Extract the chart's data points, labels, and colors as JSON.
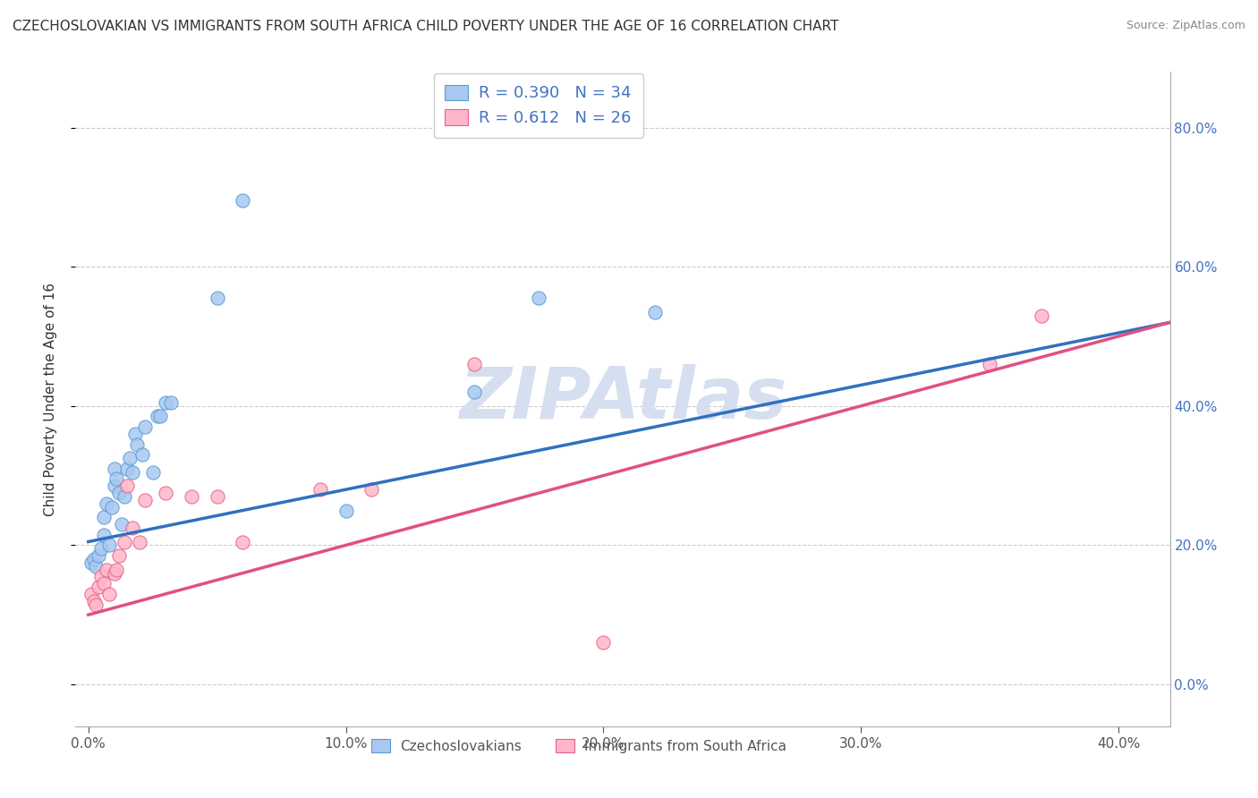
{
  "title": "CZECHOSLOVAKIAN VS IMMIGRANTS FROM SOUTH AFRICA CHILD POVERTY UNDER THE AGE OF 16 CORRELATION CHART",
  "source": "Source: ZipAtlas.com",
  "ylabel": "Child Poverty Under the Age of 16",
  "x_tick_labels": [
    "0.0%",
    "10.0%",
    "20.0%",
    "30.0%",
    "40.0%"
  ],
  "y_tick_labels": [
    "0.0%",
    "20.0%",
    "40.0%",
    "60.0%",
    "80.0%"
  ],
  "x_tick_vals": [
    0.0,
    0.1,
    0.2,
    0.3,
    0.4
  ],
  "y_tick_vals": [
    0.0,
    0.2,
    0.4,
    0.6,
    0.8
  ],
  "xlim": [
    -0.005,
    0.42
  ],
  "ylim": [
    -0.06,
    0.88
  ],
  "watermark": "ZIPAtlas",
  "series": [
    {
      "name": "Czechoslovakians",
      "fill_color": "#A8C8F0",
      "edge_color": "#5B9BD5",
      "line_color": "#3070C0",
      "R": 0.39,
      "N": 34,
      "x": [
        0.001,
        0.002,
        0.003,
        0.004,
        0.005,
        0.006,
        0.006,
        0.007,
        0.008,
        0.009,
        0.01,
        0.01,
        0.011,
        0.012,
        0.013,
        0.014,
        0.015,
        0.016,
        0.017,
        0.018,
        0.019,
        0.021,
        0.022,
        0.025,
        0.027,
        0.028,
        0.03,
        0.032,
        0.05,
        0.06,
        0.1,
        0.15,
        0.175,
        0.22
      ],
      "y": [
        0.175,
        0.18,
        0.17,
        0.185,
        0.195,
        0.215,
        0.24,
        0.26,
        0.2,
        0.255,
        0.285,
        0.31,
        0.295,
        0.275,
        0.23,
        0.27,
        0.31,
        0.325,
        0.305,
        0.36,
        0.345,
        0.33,
        0.37,
        0.305,
        0.385,
        0.385,
        0.405,
        0.405,
        0.555,
        0.695,
        0.25,
        0.42,
        0.555,
        0.535
      ],
      "trend_x": [
        0.0,
        0.42
      ],
      "trend_y": [
        0.205,
        0.52
      ]
    },
    {
      "name": "Immigrants from South Africa",
      "fill_color": "#FFB6C8",
      "edge_color": "#E8608A",
      "line_color": "#E05080",
      "R": 0.612,
      "N": 26,
      "x": [
        0.001,
        0.002,
        0.003,
        0.004,
        0.005,
        0.006,
        0.007,
        0.008,
        0.01,
        0.011,
        0.012,
        0.014,
        0.015,
        0.017,
        0.02,
        0.022,
        0.03,
        0.04,
        0.05,
        0.06,
        0.09,
        0.11,
        0.15,
        0.2,
        0.35,
        0.37
      ],
      "y": [
        0.13,
        0.12,
        0.115,
        0.14,
        0.155,
        0.145,
        0.165,
        0.13,
        0.16,
        0.165,
        0.185,
        0.205,
        0.285,
        0.225,
        0.205,
        0.265,
        0.275,
        0.27,
        0.27,
        0.205,
        0.28,
        0.28,
        0.46,
        0.06,
        0.46,
        0.53
      ],
      "trend_x": [
        0.0,
        0.42
      ],
      "trend_y": [
        0.1,
        0.52
      ]
    }
  ],
  "legend_fill_colors": [
    "#A8C8F0",
    "#FFB6C8"
  ],
  "legend_edge_colors": [
    "#5B9BD5",
    "#E8608A"
  ],
  "legend_text_color": "#4472C4",
  "grid_color": "#CCCCCC",
  "background_color": "#FFFFFF",
  "title_fontsize": 11,
  "axis_label_fontsize": 11,
  "tick_fontsize": 11,
  "dot_size": 120,
  "watermark_color": "#D5DFF0",
  "watermark_fontsize": 58
}
